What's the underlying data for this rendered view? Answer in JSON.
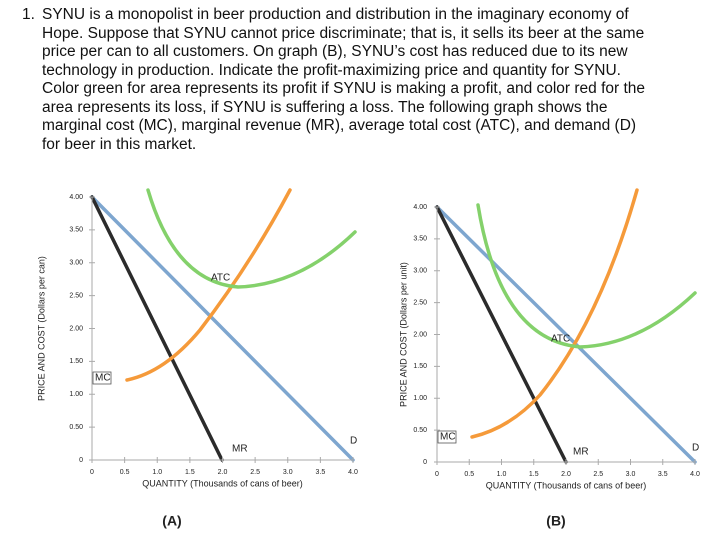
{
  "question": {
    "number": "1.",
    "lines": [
      "SYNU is a monopolist in beer production and distribution in the imaginary economy of",
      "Hope. Suppose that SYNU cannot price discriminate; that is, it sells its beer at the same",
      "price per can to all customers. On graph (B), SYNU’s cost has reduced due to its new",
      "technology in production. Indicate the profit-maximizing price and quantity for SYNU.",
      "Color green for area represents its profit if SYNU is making a profit, and color red for the",
      "area represents its loss, if SYNU is suffering a loss. The following graph shows the",
      "marginal cost (MC), marginal revenue (MR), average total cost (ATC), and demand (D)",
      "for beer in this market."
    ]
  },
  "figures": [
    {
      "caption": "(A)",
      "y_axis_title": "PRICE AND COST (Dollars per can)",
      "x_axis_title": "QUANTITY (Thousands of cans of beer)",
      "yticks": [
        "4.00",
        "3.50",
        "3.00",
        "2.50",
        "2.00",
        "1.50",
        "1.00",
        "0.50",
        "0"
      ],
      "xticks": [
        "0",
        "0.5",
        "1.0",
        "1.5",
        "2.0",
        "2.5",
        "3.0",
        "3.5",
        "4.0"
      ],
      "curve_labels": {
        "atc": "ATC",
        "mc": "MC",
        "mr": "MR",
        "d": "D"
      }
    },
    {
      "caption": "(B)",
      "y_axis_title": "PRICE AND COST (Dollars per unit)",
      "x_axis_title": "QUANTITY (Thousands of cans of beer)",
      "yticks": [
        "4.00",
        "3.50",
        "3.00",
        "2.50",
        "2.00",
        "1.50",
        "1.00",
        "0.50",
        "0"
      ],
      "xticks": [
        "0",
        "0.5",
        "1.0",
        "1.5",
        "2.0",
        "2.5",
        "3.0",
        "3.5",
        "4.0"
      ],
      "curve_labels": {
        "atc": "ATC",
        "mc": "MC",
        "mr": "MR",
        "d": "D"
      }
    }
  ]
}
